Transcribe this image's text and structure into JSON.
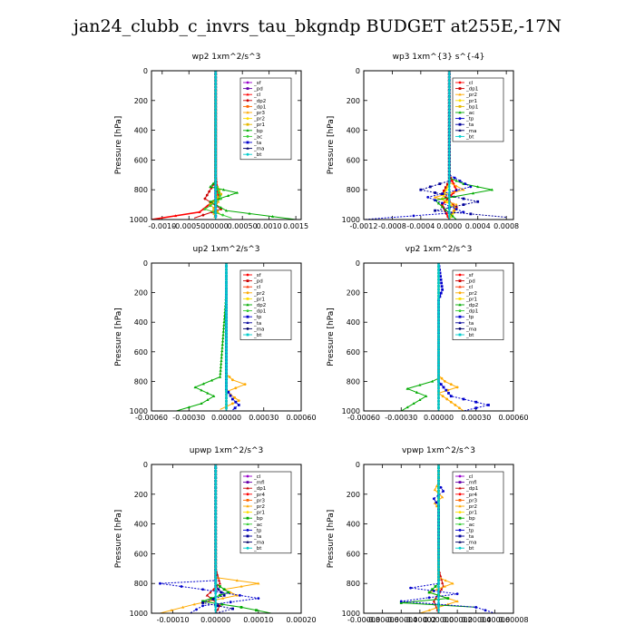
{
  "page_title": "jan24_clubb_c_invrs_tau_bkgndp  BUDGET at255E,-17N",
  "chart_data": [
    {
      "type": "line",
      "title": "wp2   1xm^2/s^3",
      "ylabel": "Pressure [hPa]",
      "ylim": [
        1000,
        0
      ],
      "yticks": [
        0,
        200,
        400,
        600,
        800,
        1000
      ],
      "xlim": [
        -0.0012,
        0.0016
      ],
      "xticks": [
        -0.001,
        -0.0005,
        0.0,
        0.0005,
        0.001,
        0.0015
      ],
      "xticklabels": [
        "-0.0010",
        "-0.00050",
        ".00000",
        "0.00050",
        "0.0010",
        "0.0015"
      ],
      "legend": [
        "_sf",
        "_pd",
        "_cl",
        "_dp2",
        "_dp1",
        "_pr3",
        "_pr2",
        "_pr1",
        "_bp",
        "_ac",
        "_ta",
        "_ma",
        "_bt"
      ],
      "colors": [
        "#9900cc",
        "#6600aa",
        "#ff0000",
        "#cc0000",
        "#ff6600",
        "#ffaa00",
        "#ffdd00",
        "#e6b800",
        "#00aa00",
        "#33cc33",
        "#0000cc",
        "#000066",
        "#00cccc"
      ],
      "series": [
        {
          "name": "_sf",
          "x": [
            0,
            0
          ],
          "y": [
            0,
            1000
          ]
        },
        {
          "name": "_pd",
          "x": [
            0,
            0,
            0
          ],
          "y": [
            0,
            500,
            1000
          ]
        },
        {
          "name": "_cl",
          "x": [
            0,
            0,
            5e-05,
            -0.0003,
            -0.0012
          ],
          "y": [
            0,
            700,
            850,
            950,
            1000
          ]
        },
        {
          "name": "_dp2",
          "x": [
            0,
            0,
            -0.0002,
            0.0001,
            -0.0004
          ],
          "y": [
            0,
            740,
            860,
            930,
            990
          ]
        },
        {
          "name": "_pr3",
          "x": [
            0,
            0,
            5e-05,
            -5e-05,
            0
          ],
          "y": [
            0,
            800,
            880,
            940,
            1000
          ]
        },
        {
          "name": "_pr1",
          "x": [
            0,
            0,
            0.0001,
            -0.0001,
            0.0001
          ],
          "y": [
            0,
            760,
            830,
            900,
            970
          ]
        },
        {
          "name": "_bp",
          "x": [
            0,
            0,
            -0.0001,
            0.0004,
            -0.0001,
            0.0002,
            0.0015
          ],
          "y": [
            0,
            740,
            780,
            820,
            880,
            940,
            1000
          ]
        },
        {
          "name": "_ac",
          "x": [
            0,
            0,
            0.0001,
            -0.0002,
            0.0003
          ],
          "y": [
            0,
            760,
            860,
            930,
            990
          ]
        },
        {
          "name": "_ta",
          "x": [
            0,
            0,
            0
          ],
          "y": [
            0,
            800,
            1000
          ]
        },
        {
          "name": "_bt",
          "x": [
            0,
            0
          ],
          "y": [
            0,
            1000
          ]
        }
      ]
    },
    {
      "type": "line",
      "title": "wp3   1xm^{3} s^{-4}",
      "ylabel": "Pressure [hPa]",
      "ylim": [
        1000,
        0
      ],
      "yticks": [
        0,
        200,
        400,
        600,
        800,
        1000
      ],
      "xlim": [
        -0.0012,
        0.0009
      ],
      "xticks": [
        -0.0012,
        -0.0008,
        -0.0004,
        0.0,
        0.0004,
        0.0008
      ],
      "xticklabels": [
        "-0.0012",
        "-0.0008",
        "-0.0004",
        "0.0000",
        "0.0004",
        "0.0008"
      ],
      "legend": [
        "_cl",
        "_dp1",
        "_pr2",
        "_pr1",
        "_bp1",
        "_ac",
        "_tp",
        "_ta",
        "_ma",
        "_bt"
      ],
      "colors": [
        "#ff0000",
        "#cc0000",
        "#ffaa00",
        "#ffdd00",
        "#e6b800",
        "#00aa00",
        "#0000cc",
        "#000099",
        "#000066",
        "#00cccc"
      ],
      "series": [
        {
          "name": "_cl",
          "x": [
            0,
            0,
            0.0001,
            -0.0001,
            0
          ],
          "y": [
            0,
            700,
            800,
            900,
            1000
          ]
        },
        {
          "name": "_dp1",
          "x": [
            0,
            0,
            -0.0001,
            0.0001,
            0
          ],
          "y": [
            0,
            740,
            830,
            920,
            990
          ]
        },
        {
          "name": "_pr2",
          "x": [
            0,
            0,
            0.0002,
            -0.0002,
            0.0001,
            0
          ],
          "y": [
            0,
            750,
            800,
            850,
            900,
            1000
          ]
        },
        {
          "name": "_pr1",
          "x": [
            0,
            0,
            -0.0001,
            0.0001,
            0
          ],
          "y": [
            0,
            760,
            860,
            930,
            1000
          ]
        },
        {
          "name": "_ac",
          "x": [
            0,
            0,
            0.0002,
            0.0006,
            -0.0002,
            0.0001
          ],
          "y": [
            0,
            720,
            760,
            800,
            870,
            1000
          ]
        },
        {
          "name": "_tp",
          "x": [
            0,
            0,
            0.0003,
            -0.0003,
            0.0002,
            -0.0012
          ],
          "y": [
            0,
            700,
            780,
            850,
            950,
            1000
          ]
        },
        {
          "name": "_ta",
          "x": [
            0,
            0,
            -0.0004,
            0.0004,
            -0.0002,
            0.0008
          ],
          "y": [
            0,
            740,
            800,
            880,
            940,
            985
          ]
        },
        {
          "name": "_bt",
          "x": [
            0,
            0
          ],
          "y": [
            0,
            1000
          ]
        }
      ]
    },
    {
      "type": "line",
      "title": "up2   1xm^2/s^3",
      "ylabel": "Pressure [hPa]",
      "ylim": [
        1000,
        0
      ],
      "yticks": [
        0,
        200,
        400,
        600,
        800,
        1000
      ],
      "xlim": [
        -0.0006,
        0.0006
      ],
      "xticks": [
        -0.0006,
        -0.0003,
        0.0,
        0.0003,
        0.0006
      ],
      "xticklabels": [
        "-0.00060",
        "-0.00030",
        "0.00000",
        "0.00030",
        "0.00060"
      ],
      "legend": [
        "_sf",
        "_pd",
        "_cl",
        "_pr2",
        "_pr1",
        "_dp2",
        "_dp1",
        "_tp",
        "_ta",
        "_ma",
        "_bt"
      ],
      "colors": [
        "#ff0000",
        "#cc0000",
        "#ff3300",
        "#ffaa00",
        "#ffdd00",
        "#00aa00",
        "#33cc33",
        "#0000cc",
        "#000099",
        "#000066",
        "#00cccc"
      ],
      "series": [
        {
          "name": "_sf",
          "x": [
            0,
            0
          ],
          "y": [
            0,
            1000
          ]
        },
        {
          "name": "_cl",
          "x": [
            0,
            0,
            0
          ],
          "y": [
            0,
            500,
            1000
          ]
        },
        {
          "name": "_pr2",
          "x": [
            0,
            0,
            5e-05,
            0.00015,
            0,
            0.0001,
            -5e-05
          ],
          "y": [
            0,
            750,
            790,
            820,
            870,
            930,
            990
          ]
        },
        {
          "name": "_dp2",
          "x": [
            0,
            0,
            -5e-05,
            -0.00025,
            -0.0001,
            -0.0002,
            -0.0004
          ],
          "y": [
            0,
            200,
            770,
            840,
            900,
            950,
            1000
          ]
        },
        {
          "name": "_tp",
          "x": [
            0,
            0,
            5e-05,
            0.0001,
            4e-05
          ],
          "y": [
            0,
            850,
            920,
            960,
            1000
          ]
        },
        {
          "name": "_bt",
          "x": [
            0,
            0
          ],
          "y": [
            0,
            1000
          ]
        }
      ]
    },
    {
      "type": "line",
      "title": "vp2   1xm^2/s^3",
      "ylabel": "Pressure [hPa]",
      "ylim": [
        1000,
        0
      ],
      "yticks": [
        0,
        200,
        400,
        600,
        800,
        1000
      ],
      "xlim": [
        -0.0006,
        0.0006
      ],
      "xticks": [
        -0.0006,
        -0.0003,
        0.0,
        0.0003,
        0.0006
      ],
      "xticklabels": [
        "-0.00060",
        "-0.00030",
        "0.00000",
        "0.00030",
        "0.00060"
      ],
      "legend": [
        "_sf",
        "_pd",
        "_cl",
        "_pr2",
        "_pr1",
        "_dp2",
        "_dp1",
        "_tp",
        "_ta",
        "_ma",
        "_bt"
      ],
      "colors": [
        "#ff0000",
        "#cc0000",
        "#ff3300",
        "#ffaa00",
        "#ffdd00",
        "#00aa00",
        "#33cc33",
        "#0000cc",
        "#000099",
        "#000066",
        "#00cccc"
      ],
      "series": [
        {
          "name": "_sf",
          "x": [
            0,
            0
          ],
          "y": [
            0,
            1000
          ]
        },
        {
          "name": "_cl",
          "x": [
            0,
            0,
            0
          ],
          "y": [
            0,
            500,
            1000
          ]
        },
        {
          "name": "_pr2",
          "x": [
            0,
            0,
            5e-05,
            0.00015,
            0,
            0.0001,
            0.0002
          ],
          "y": [
            0,
            760,
            800,
            840,
            880,
            940,
            1000
          ]
        },
        {
          "name": "_dp2",
          "x": [
            0,
            0,
            -5e-05,
            -0.00025,
            -0.0001,
            -0.0002,
            -0.0003
          ],
          "y": [
            0,
            780,
            800,
            850,
            900,
            950,
            1000
          ]
        },
        {
          "name": "_tp",
          "x": [
            0,
            3e-05,
            0,
            0,
            0.0001,
            0.0004,
            0.0002
          ],
          "y": [
            0,
            180,
            250,
            800,
            900,
            960,
            1000
          ]
        },
        {
          "name": "_bt",
          "x": [
            0,
            0
          ],
          "y": [
            0,
            1000
          ]
        }
      ]
    },
    {
      "type": "line",
      "title": "upwp   1xm^2/s^3",
      "ylabel": "Pressure [hPa]",
      "ylim": [
        1000,
        0
      ],
      "yticks": [
        0,
        200,
        400,
        600,
        800,
        1000
      ],
      "xlim": [
        -0.00015,
        0.0002
      ],
      "xticks": [
        -0.0001,
        0.0,
        0.0001,
        0.0002
      ],
      "xticklabels": [
        "-0.00010",
        "0.00000",
        "0.00010",
        "0.00020"
      ],
      "legend": [
        "_cl",
        "_mfl",
        "_dp1",
        "_pr4",
        "_pr3",
        "_pr2",
        "_pr1",
        "_bp",
        "_ac",
        "_tp",
        "_ta",
        "_ma",
        "_bt"
      ],
      "colors": [
        "#9900cc",
        "#6600aa",
        "#cc0000",
        "#ff0000",
        "#ff6600",
        "#ffaa00",
        "#ffdd00",
        "#00aa00",
        "#33cc33",
        "#0000cc",
        "#000099",
        "#000066",
        "#00cccc"
      ],
      "series": [
        {
          "name": "_cl",
          "x": [
            0,
            0
          ],
          "y": [
            0,
            1000
          ]
        },
        {
          "name": "_dp1",
          "x": [
            0,
            0,
            1e-05,
            -2e-05,
            1e-05,
            0
          ],
          "y": [
            0,
            700,
            800,
            880,
            950,
            1000
          ]
        },
        {
          "name": "_pr2",
          "x": [
            0,
            0,
            0.0001,
            2e-05,
            5e-05,
            -5e-05,
            -0.00013
          ],
          "y": [
            0,
            760,
            800,
            840,
            880,
            940,
            1000
          ]
        },
        {
          "name": "_bp",
          "x": [
            0,
            0,
            3e-05,
            -3e-05,
            6e-05,
            0.00013
          ],
          "y": [
            0,
            800,
            860,
            920,
            960,
            1000
          ]
        },
        {
          "name": "_tp",
          "x": [
            0,
            0,
            -0.00013,
            -3e-05,
            0.0001,
            -3e-05,
            -6e-05
          ],
          "y": [
            0,
            780,
            800,
            840,
            900,
            950,
            1000
          ]
        },
        {
          "name": "_ta",
          "x": [
            0,
            0,
            2e-05,
            -3e-05,
            4e-05,
            0
          ],
          "y": [
            0,
            820,
            880,
            930,
            970,
            1000
          ]
        },
        {
          "name": "_bt",
          "x": [
            0,
            0
          ],
          "y": [
            0,
            1000
          ]
        }
      ]
    },
    {
      "type": "line",
      "title": "vpwp   1xm^2/s^3",
      "ylabel": "Pressure [hPa]",
      "ylim": [
        1000,
        0
      ],
      "yticks": [
        0,
        200,
        400,
        600,
        800,
        1000
      ],
      "xlim": [
        -8e-05,
        8e-05
      ],
      "xticks": [
        -8e-05,
        -6e-05,
        -4e-05,
        -2e-05,
        0.0,
        2e-05,
        4e-05,
        6e-05,
        8e-05
      ],
      "xticklabels": [
        "-0.00008",
        "-0.00006",
        "-0.00004",
        "-0.00002",
        "0.00000",
        "0.00002",
        "0.00004",
        "0.00006",
        "0.00008"
      ],
      "legend": [
        "_cl",
        "_mfl",
        "_dp1",
        "_pr4",
        "_pr3",
        "_pr2",
        "_pr1",
        "_bp",
        "_ac",
        "_tp",
        "_ta",
        "_ma",
        "_bt"
      ],
      "colors": [
        "#9900cc",
        "#6600aa",
        "#cc0000",
        "#ff0000",
        "#ff6600",
        "#ffaa00",
        "#ffdd00",
        "#00aa00",
        "#33cc33",
        "#0000cc",
        "#000099",
        "#000066",
        "#00cccc"
      ],
      "series": [
        {
          "name": "_cl",
          "x": [
            0,
            0
          ],
          "y": [
            0,
            1000
          ]
        },
        {
          "name": "_dp1",
          "x": [
            0,
            0,
            5e-06,
            -5e-06,
            0
          ],
          "y": [
            0,
            700,
            820,
            920,
            1000
          ]
        },
        {
          "name": "_pr2",
          "x": [
            0,
            0,
            -4e-06,
            4e-06,
            -4e-06,
            0,
            0,
            1.5e-05,
            -1e-05,
            2e-05,
            -2e-05
          ],
          "y": [
            0,
            120,
            170,
            220,
            260,
            300,
            760,
            800,
            860,
            920,
            1000
          ]
        },
        {
          "name": "_bp",
          "x": [
            0,
            0,
            -1e-05,
            1e-05,
            -4e-05,
            4e-05
          ],
          "y": [
            0,
            800,
            860,
            900,
            930,
            960
          ]
        },
        {
          "name": "_tp",
          "x": [
            0,
            0,
            5e-06,
            -5e-06,
            0,
            0,
            -3e-05,
            2e-05,
            -4e-05,
            4e-05,
            6e-05
          ],
          "y": [
            0,
            130,
            180,
            230,
            280,
            800,
            830,
            870,
            920,
            960,
            1000
          ]
        },
        {
          "name": "_bt",
          "x": [
            0,
            0
          ],
          "y": [
            0,
            1000
          ]
        }
      ]
    }
  ]
}
